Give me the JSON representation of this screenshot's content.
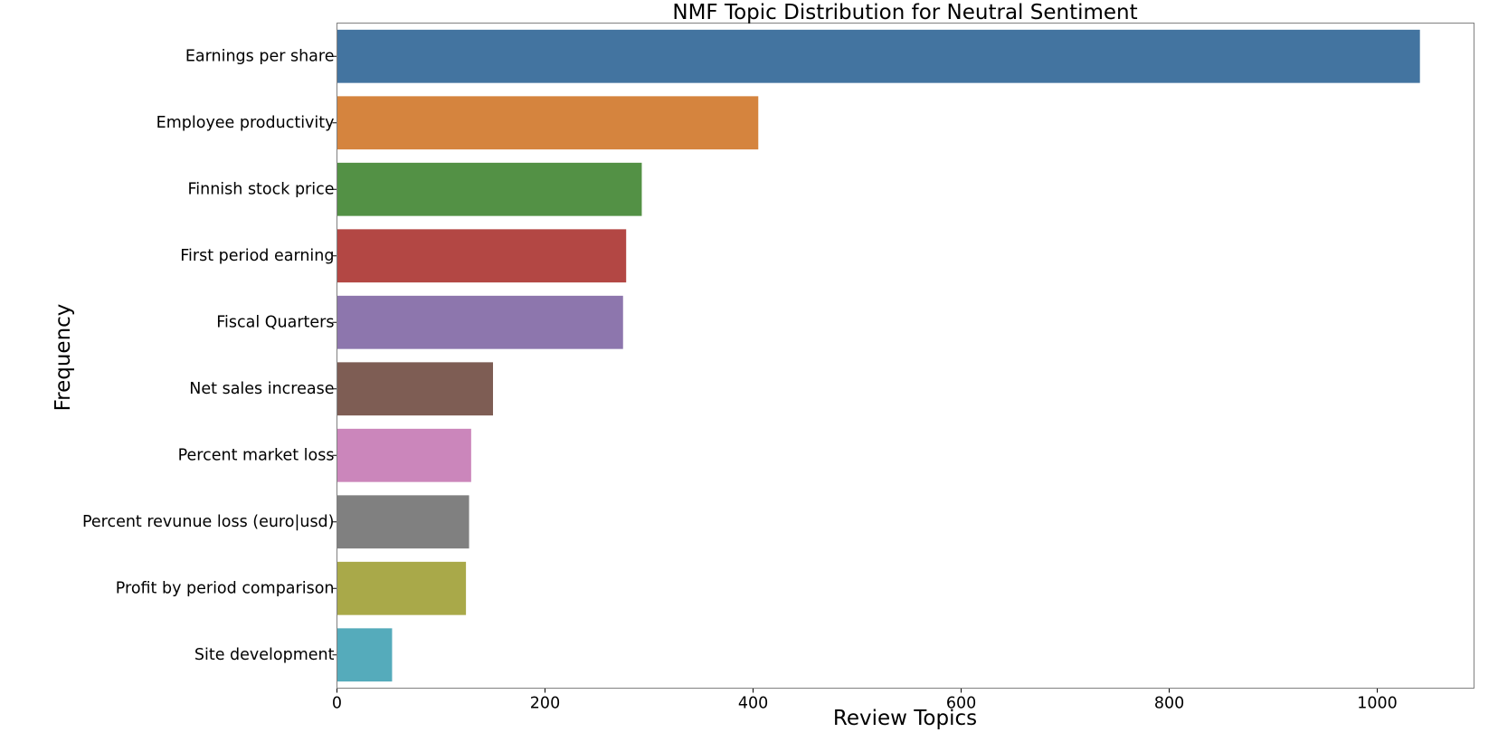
{
  "chart_data": {
    "type": "bar",
    "orientation": "horizontal",
    "title": "NMF Topic Distribution for Neutral Sentiment",
    "xlabel": "Review Topics",
    "ylabel": "Frequency",
    "categories": [
      "Earnings per share",
      "Employee productivity",
      "Finnish stock price",
      "First period earning",
      "Fiscal Quarters",
      "Net sales increase",
      "Percent market loss",
      "Percent revunue loss (euro|usd)",
      "Profit by period comparison",
      "Site development"
    ],
    "values": [
      1041,
      405,
      293,
      278,
      275,
      150,
      129,
      127,
      124,
      53
    ],
    "colors": [
      "#4374a0",
      "#d5843e",
      "#539145",
      "#b34744",
      "#8d76ad",
      "#7e5d54",
      "#cb86bb",
      "#808080",
      "#a9a949",
      "#55abbb"
    ],
    "xlim": [
      0,
      1093
    ],
    "xticks": [
      0,
      200,
      400,
      600,
      800,
      1000
    ],
    "grid": false,
    "legend": "none"
  }
}
